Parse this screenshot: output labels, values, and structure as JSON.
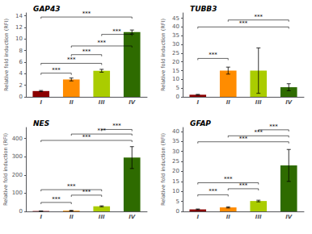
{
  "chart_data": [
    {
      "type": "bar",
      "title": "GAP43",
      "ylabel": "Relative fold induction (RFI)",
      "categories": [
        "I",
        "II",
        "III",
        "IV"
      ],
      "values": [
        1.0,
        3.0,
        4.5,
        11.2
      ],
      "errors": [
        0.1,
        0.25,
        0.25,
        0.35
      ],
      "colors": [
        "#8B0000",
        "#FF8C00",
        "#AACC00",
        "#2E6B00"
      ],
      "ylim": [
        0,
        14.5
      ],
      "yticks": [
        0,
        2,
        4,
        6,
        8,
        10,
        12,
        14
      ],
      "grid": false,
      "brackets": [
        {
          "from": "I",
          "to": "II",
          "y": 3.8,
          "label": "***"
        },
        {
          "from": "I",
          "to": "III",
          "y": 5.5,
          "label": "***"
        },
        {
          "from": "II",
          "to": "IV",
          "y": 8.5,
          "label": "***"
        },
        {
          "from": "III",
          "to": "IV",
          "y": 10.5,
          "label": "***"
        },
        {
          "from": "I",
          "to": "IV",
          "y": 13.5,
          "label": "***"
        },
        {
          "from": "II",
          "to": "III",
          "y": 7.0,
          "label": "***"
        }
      ]
    },
    {
      "type": "bar",
      "title": "TUBB3",
      "ylabel": "Relative fold induction (RFI)",
      "categories": [
        "I",
        "II",
        "III",
        "IV"
      ],
      "values": [
        1.2,
        15.0,
        15.0,
        5.5
      ],
      "errors": [
        0.2,
        2.0,
        13.0,
        2.0
      ],
      "colors": [
        "#8B0000",
        "#FF8C00",
        "#AACC00",
        "#2E6B00"
      ],
      "ylim": [
        0,
        48
      ],
      "yticks": [
        0,
        5,
        10,
        15,
        20,
        25,
        30,
        35,
        40,
        45
      ],
      "grid": false,
      "brackets": [
        {
          "from": "I",
          "to": "II",
          "y": 21.0,
          "label": "***"
        },
        {
          "from": "I",
          "to": "IV",
          "y": 39.0,
          "label": "***"
        },
        {
          "from": "II",
          "to": "IV",
          "y": 43.0,
          "label": "***"
        }
      ]
    },
    {
      "type": "bar",
      "title": "NES",
      "ylabel": "Relative fold induction (RFI)",
      "categories": [
        "I",
        "II",
        "III",
        "IV"
      ],
      "values": [
        2.0,
        4.0,
        28.0,
        295.0
      ],
      "errors": [
        0.5,
        1.5,
        2.5,
        60.0
      ],
      "colors": [
        "#8B0000",
        "#FF8C00",
        "#AACC00",
        "#2E6B00"
      ],
      "ylim": [
        0,
        460
      ],
      "yticks": [
        0,
        100,
        200,
        300,
        400
      ],
      "grid": false,
      "brackets": [
        {
          "from": "I",
          "to": "II",
          "y": 40.0,
          "label": "***"
        },
        {
          "from": "II",
          "to": "III",
          "y": 80.0,
          "label": "***"
        },
        {
          "from": "I",
          "to": "III",
          "y": 110.0,
          "label": "***"
        },
        {
          "from": "I",
          "to": "IV",
          "y": 380.0,
          "label": "***"
        },
        {
          "from": "II",
          "to": "IV",
          "y": 415.0,
          "label": "***"
        },
        {
          "from": "III",
          "to": "IV",
          "y": 440.0,
          "label": "***"
        }
      ]
    },
    {
      "type": "bar",
      "title": "GFAP",
      "ylabel": "Relative fold induction (RFI)",
      "categories": [
        "I",
        "II",
        "III",
        "IV"
      ],
      "values": [
        1.0,
        2.0,
        5.2,
        23.0
      ],
      "errors": [
        0.2,
        0.3,
        0.4,
        8.0
      ],
      "colors": [
        "#8B0000",
        "#FF8C00",
        "#AACC00",
        "#2E6B00"
      ],
      "ylim": [
        0,
        42
      ],
      "yticks": [
        0,
        5,
        10,
        15,
        20,
        25,
        30,
        35,
        40
      ],
      "grid": false,
      "brackets": [
        {
          "from": "I",
          "to": "II",
          "y": 7.5,
          "label": "***"
        },
        {
          "from": "II",
          "to": "III",
          "y": 10.5,
          "label": "***"
        },
        {
          "from": "I",
          "to": "III",
          "y": 13.5,
          "label": "***"
        },
        {
          "from": "I",
          "to": "IV",
          "y": 34.0,
          "label": "***"
        },
        {
          "from": "II",
          "to": "IV",
          "y": 37.0,
          "label": "***"
        },
        {
          "from": "III",
          "to": "IV",
          "y": 40.0,
          "label": "***"
        }
      ]
    }
  ]
}
